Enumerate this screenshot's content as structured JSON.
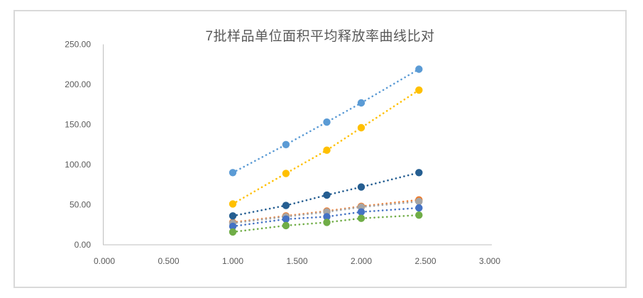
{
  "chart_data": {
    "type": "scatter",
    "title": "7批样品单位面积平均释放率曲线比对",
    "xlabel": "",
    "ylabel": "",
    "xlim": [
      0,
      3
    ],
    "ylim": [
      0,
      250
    ],
    "grid": false,
    "legend": "none",
    "line_style": "dotted",
    "marker": "circle",
    "x_tick_values": [
      0,
      0.5,
      1.0,
      1.5,
      2.0,
      2.5,
      3.0
    ],
    "x_tick_labels": [
      "0.000",
      "0.500",
      "1.000",
      "1.500",
      "2.000",
      "2.500",
      "3.000"
    ],
    "y_tick_values": [
      0,
      50,
      100,
      150,
      200,
      250
    ],
    "y_tick_labels": [
      "0.00",
      "50.00",
      "100.00",
      "150.00",
      "200.00",
      "250.00"
    ],
    "x": [
      1.0,
      1.414,
      1.732,
      2.0,
      2.449
    ],
    "series": [
      {
        "name": "light-blue-series",
        "color": "#5B9BD5",
        "values": [
          90,
          125,
          153,
          177,
          219
        ]
      },
      {
        "name": "gold-series",
        "color": "#FFC000",
        "values": [
          51,
          89,
          118,
          146,
          193
        ]
      },
      {
        "name": "orange-series",
        "color": "#ED7D31",
        "values": [
          28,
          36,
          42,
          48,
          56
        ]
      },
      {
        "name": "gray-series",
        "color": "#A5A5A5",
        "values": [
          27,
          35,
          41,
          47,
          54
        ]
      },
      {
        "name": "royal-blue-series",
        "color": "#4472C4",
        "values": [
          23,
          32,
          35,
          41,
          46
        ]
      },
      {
        "name": "green-series",
        "color": "#70AD47",
        "values": [
          16,
          24,
          28,
          33,
          37
        ]
      },
      {
        "name": "dark-navy-series",
        "color": "#255E91",
        "values": [
          36,
          49,
          62,
          72,
          90
        ]
      }
    ],
    "axis_color": "#BFBFBF",
    "tick_label_color": "#595959",
    "frame_border_color": "#D9D9D9",
    "title_color": "#595959"
  }
}
